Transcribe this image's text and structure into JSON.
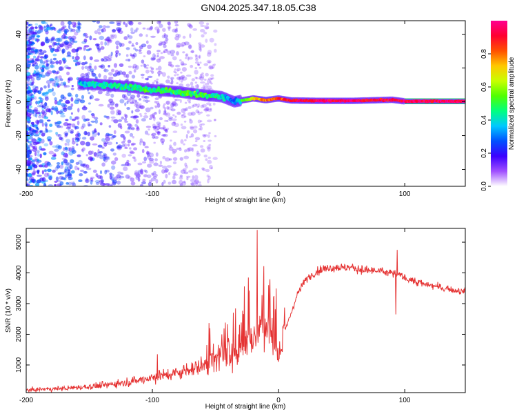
{
  "figure_title": "GN04.2025.347.18.05.C38",
  "colors": {
    "snr_line": "#e53333",
    "ridge_low": "#3b00ff",
    "background": "#ffffff",
    "axis": "#000000"
  },
  "chart_data": [
    {
      "type": "heatmap",
      "title": "GN04.2025.347.18.05.C38",
      "xlabel": "Height of straight line (km)",
      "ylabel": "Frequency (Hz)",
      "xlim": [
        -200,
        148
      ],
      "ylim": [
        -50,
        48
      ],
      "xticks": [
        -200,
        -100,
        0,
        100
      ],
      "xtick_labels": [
        "-200",
        "-100",
        "0",
        "100"
      ],
      "yticks": [
        -40,
        -20,
        0,
        20,
        40
      ],
      "ytick_labels": [
        "-40",
        "-20",
        "0",
        "20",
        "40"
      ],
      "ridge": {
        "x": [
          -158,
          -140,
          -120,
          -100,
          -80,
          -60,
          -45,
          -35,
          -28,
          -20,
          -10,
          0,
          10,
          30,
          60,
          90,
          100,
          148
        ],
        "freq": [
          11,
          10,
          9,
          7,
          6,
          4,
          3,
          0,
          1,
          2,
          1,
          2,
          0.8,
          0.6,
          0.6,
          1.2,
          0.3,
          0.3
        ],
        "amplitude": [
          0.35,
          0.45,
          0.45,
          0.45,
          0.5,
          0.5,
          0.4,
          0.3,
          0.5,
          0.7,
          0.8,
          0.85,
          0.9,
          0.95,
          0.95,
          0.9,
          0.95,
          0.95
        ]
      },
      "colorbar": {
        "label": "Normalized spectral amplitude",
        "range": [
          0,
          1
        ],
        "ticks": [
          0.0,
          0.2,
          0.4,
          0.6,
          0.8
        ],
        "tick_labels": [
          "0.0",
          "0.2",
          "0.4",
          "0.6",
          "0.8"
        ],
        "stops": [
          "#ffffff",
          "#a050ff",
          "#3b00ff",
          "#0050ff",
          "#00c8ff",
          "#00ff80",
          "#50ff00",
          "#c8ff00",
          "#ffc800",
          "#ff5000",
          "#ff0030",
          "#ff0090"
        ]
      }
    },
    {
      "type": "line",
      "xlabel": "Height of straight line (km)",
      "ylabel": "SNR (10 * v/v)",
      "xlim": [
        -200,
        148
      ],
      "ylim": [
        100,
        5450
      ],
      "xticks": [
        -200,
        -100,
        0,
        100
      ],
      "xtick_labels": [
        "-200",
        "-100",
        "0",
        "100"
      ],
      "yticks": [
        1000,
        2000,
        3000,
        4000,
        5000
      ],
      "ytick_labels": [
        "1000",
        "2000",
        "3000",
        "4000",
        "5000"
      ],
      "series": [
        {
          "name": "SNR",
          "x": [
            -200,
            -180,
            -160,
            -140,
            -120,
            -100,
            -80,
            -60,
            -50,
            -40,
            -30,
            -20,
            -15,
            -10,
            -5,
            0,
            5,
            10,
            15,
            20,
            25,
            30,
            40,
            50,
            60,
            70,
            80,
            90,
            95,
            100,
            110,
            120,
            130,
            148
          ],
          "y": [
            180,
            220,
            260,
            330,
            450,
            600,
            750,
            1000,
            1250,
            1350,
            1550,
            1850,
            2200,
            2200,
            1950,
            1400,
            2100,
            2700,
            3300,
            3700,
            3900,
            4050,
            4180,
            4180,
            4150,
            4080,
            4050,
            4000,
            3950,
            3850,
            3700,
            3600,
            3500,
            3380
          ],
          "spikes": [
            {
              "x": -96,
              "y": 1350
            },
            {
              "x": -57,
              "y": 1650
            },
            {
              "x": -45,
              "y": 2000
            },
            {
              "x": -36,
              "y": 2700
            },
            {
              "x": -33,
              "y": 1500
            },
            {
              "x": -24,
              "y": 3850
            },
            {
              "x": -22,
              "y": 2200
            },
            {
              "x": -17,
              "y": 5400
            },
            {
              "x": -15,
              "y": 2600
            },
            {
              "x": -12,
              "y": 3300
            },
            {
              "x": -8,
              "y": 3600
            },
            {
              "x": -4,
              "y": 3200
            },
            {
              "x": 94,
              "y": 4750
            },
            {
              "x": 93,
              "y": 2650
            }
          ]
        }
      ]
    }
  ]
}
